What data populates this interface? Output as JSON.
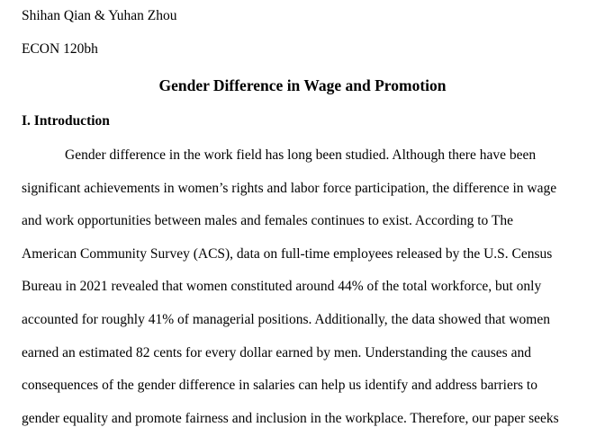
{
  "document": {
    "author": "Shihan Qian & Yuhan Zhou",
    "course": "ECON 120bh",
    "title": "Gender Difference in Wage and Promotion",
    "section_heading": "I. Introduction",
    "body_lines": [
      "Gender difference in the work field has long been studied. Although there have been",
      "significant achievements in women’s rights and labor force participation, the difference in wage",
      "and work opportunities between males and females continues to exist. According to The",
      "American Community Survey (ACS), data on full-time employees released by the U.S. Census",
      "Bureau in 2021 revealed that women constituted around 44% of the total workforce, but only",
      "accounted for roughly 41% of managerial positions. Additionally, the data showed that women",
      "earned an estimated 82 cents for every dollar earned by men. Understanding the causes and",
      "consequences of the gender difference in salaries can help us identify and address barriers to",
      "gender equality and promote fairness and inclusion in the workplace. Therefore, our paper seeks"
    ]
  }
}
